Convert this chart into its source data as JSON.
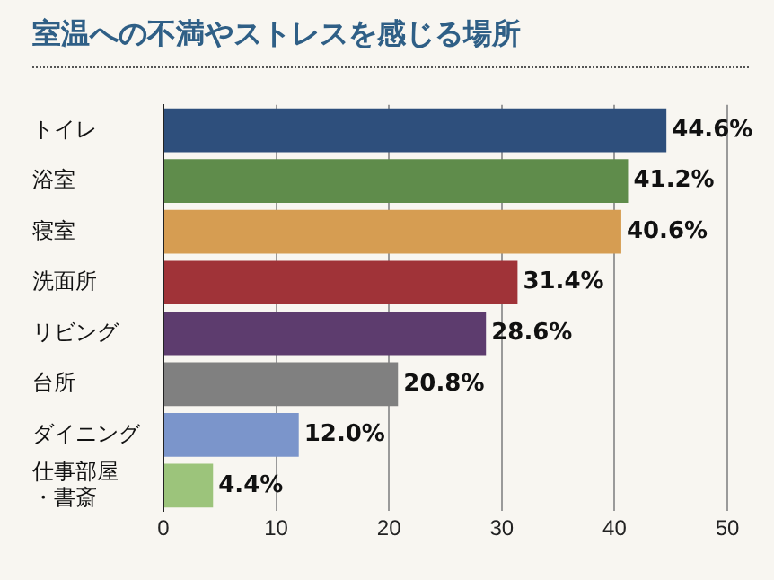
{
  "chart_data": {
    "type": "bar",
    "orientation": "horizontal",
    "title": "室温への不満やストレスを感じる場所",
    "categories": [
      "トイレ",
      "浴室",
      "寝室",
      "洗面所",
      "リビング",
      "台所",
      "ダイニング",
      "仕事部屋・書斎"
    ],
    "values": [
      44.6,
      41.2,
      40.6,
      31.4,
      28.6,
      20.8,
      12.0,
      4.4
    ],
    "colors": [
      "#2e4f7c",
      "#5f8c4b",
      "#d69d52",
      "#a03338",
      "#5d3c6e",
      "#808080",
      "#7b95cb",
      "#9cc47b"
    ],
    "value_labels": [
      "44.6%",
      "41.2%",
      "40.6%",
      "31.4%",
      "28.6%",
      "20.8%",
      "12.0%",
      "4.4%"
    ],
    "xlim": [
      0,
      50
    ],
    "xticks": [
      0,
      10,
      20,
      30,
      40,
      50
    ],
    "grid": "x",
    "legend": false
  }
}
